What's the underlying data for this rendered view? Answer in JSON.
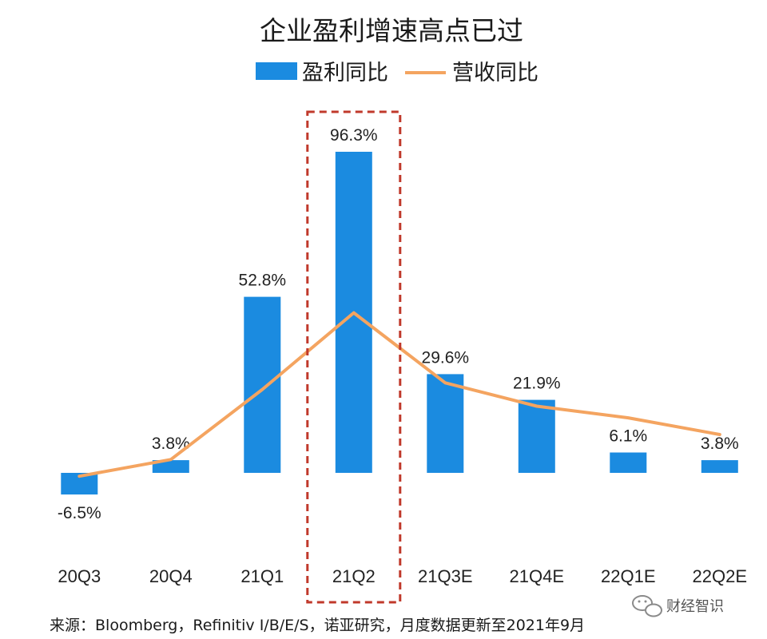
{
  "chart_data": {
    "type": "bar",
    "title": "企业盈利增速高点已过",
    "categories": [
      "20Q3",
      "20Q4",
      "21Q1",
      "21Q2",
      "21Q3E",
      "21Q4E",
      "22Q1E",
      "22Q2E"
    ],
    "series": [
      {
        "name": "盈利同比",
        "type": "bar",
        "color": "#1b8be0",
        "values": [
          -6.5,
          3.8,
          52.8,
          96.3,
          29.6,
          21.9,
          6.1,
          3.8
        ],
        "labels": [
          "-6.5%",
          "3.8%",
          "52.8%",
          "96.3%",
          "29.6%",
          "21.9%",
          "6.1%",
          "3.8%"
        ]
      },
      {
        "name": "营收同比",
        "type": "line",
        "color": "#f4a460",
        "values": [
          -1.0,
          4.0,
          25.0,
          48.0,
          27.0,
          20.0,
          16.5,
          11.5
        ]
      }
    ],
    "highlight": {
      "category": "21Q2",
      "color": "#c0392b",
      "style": "dashed"
    },
    "ylim": [
      -28,
      100
    ],
    "grid": false,
    "legend_position": "top-center",
    "xlabel": "",
    "ylabel": ""
  },
  "source_note": "来源：Bloomberg，Refinitiv I/B/E/S，诺亚研究，月度数据更新至2021年9月",
  "watermark": {
    "text": "财经智识",
    "icon": "wechat-icon"
  }
}
